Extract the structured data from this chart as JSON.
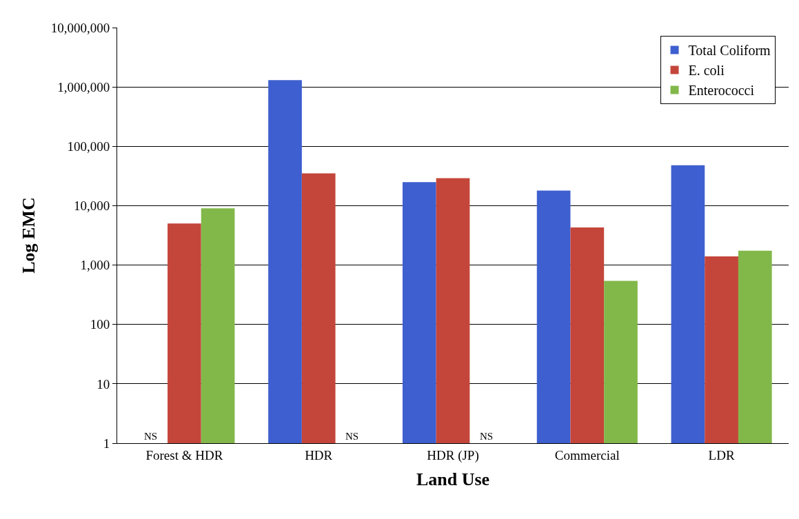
{
  "chart_data": {
    "type": "bar",
    "xlabel": "Land Use",
    "ylabel": "Log EMC",
    "log": "y",
    "categories": [
      "Forest & HDR",
      "HDR",
      "HDR (JP)",
      "Commercial",
      "LDR"
    ],
    "series": [
      {
        "name": "Total Coliform",
        "color": "#3e5fcf",
        "values": [
          null,
          1300000,
          25000,
          18000,
          48000
        ],
        "value_labels": [
          "NS",
          null,
          null,
          null,
          null
        ]
      },
      {
        "name": "E. coli",
        "color": "#c4463a",
        "values": [
          5000,
          35000,
          29000,
          4300,
          1400
        ],
        "value_labels": [
          null,
          null,
          null,
          null,
          null
        ]
      },
      {
        "name": "Enterococci",
        "color": "#82b84a",
        "values": [
          9000,
          null,
          null,
          540,
          1750
        ],
        "value_labels": [
          null,
          "NS",
          "NS",
          null,
          null
        ]
      }
    ],
    "ylim": [
      1,
      10000000
    ],
    "yticks": [
      1,
      10,
      100,
      {
        "value": 1000,
        "label": "1,000"
      },
      {
        "value": 10000,
        "label": "10,000"
      },
      {
        "value": 100000,
        "label": "100,000"
      },
      {
        "value": 1000000,
        "label": "1,000,000"
      },
      {
        "value": 10000000,
        "label": "10,000,000"
      }
    ],
    "grid": "y",
    "legend": "top right"
  }
}
